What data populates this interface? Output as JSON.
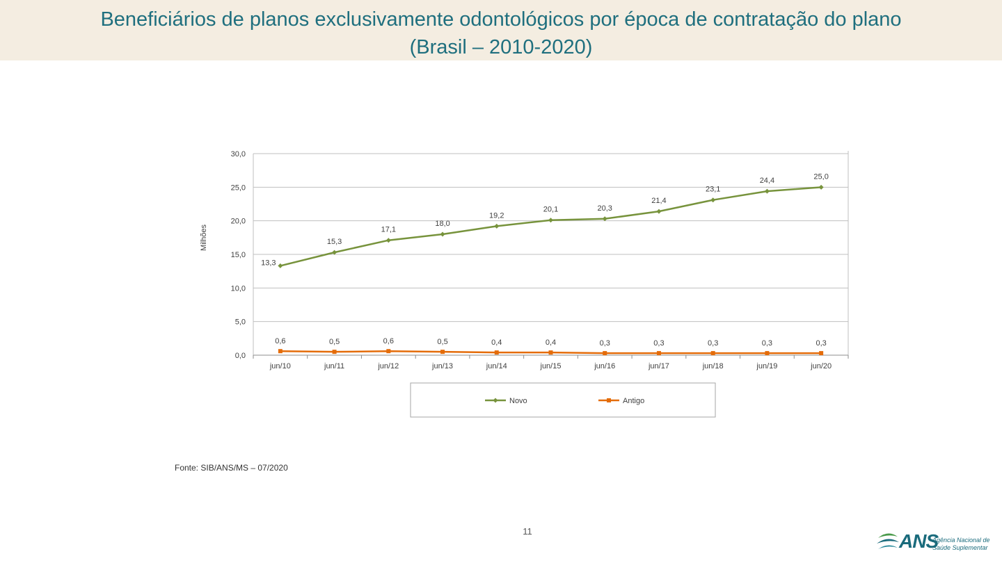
{
  "header": {
    "title_line1": "Beneficiários de planos exclusivamente odontológicos por época de contratação do plano",
    "title_line2": "(Brasil – 2010-2020)"
  },
  "chart_data": {
    "type": "line",
    "ylabel": "Milhões",
    "ylim": [
      0,
      30
    ],
    "yticks": [
      0,
      5,
      10,
      15,
      20,
      25,
      30
    ],
    "ytick_labels": [
      "0,0",
      "5,0",
      "10,0",
      "15,0",
      "20,0",
      "25,0",
      "30,0"
    ],
    "categories": [
      "jun/10",
      "jun/11",
      "jun/12",
      "jun/13",
      "jun/14",
      "jun/15",
      "jun/16",
      "jun/17",
      "jun/18",
      "jun/19",
      "jun/20"
    ],
    "grid": true,
    "legend_position": "bottom",
    "series": [
      {
        "name": "Novo",
        "color": "#77933c",
        "marker": "diamond",
        "values": [
          13.3,
          15.3,
          17.1,
          18.0,
          19.2,
          20.1,
          20.3,
          21.4,
          23.1,
          24.4,
          25.0
        ],
        "labels": [
          "13,3",
          "15,3",
          "17,1",
          "18,0",
          "19,2",
          "20,1",
          "20,3",
          "21,4",
          "23,1",
          "24,4",
          "25,0"
        ]
      },
      {
        "name": "Antigo",
        "color": "#e46c0a",
        "marker": "square",
        "values": [
          0.6,
          0.5,
          0.6,
          0.5,
          0.4,
          0.4,
          0.3,
          0.3,
          0.3,
          0.3,
          0.3
        ],
        "labels": [
          "0,6",
          "0,5",
          "0,6",
          "0,5",
          "0,4",
          "0,4",
          "0,3",
          "0,3",
          "0,3",
          "0,3",
          "0,3"
        ]
      }
    ]
  },
  "footer": {
    "source": "Fonte: SIB/ANS/MS – 07/2020",
    "page_number": "11"
  },
  "logo": {
    "brand": "ANS",
    "line1": "Agência Nacional de",
    "line2": "Saúde Suplementar"
  },
  "colors": {
    "title": "#1f6f7e",
    "title_band": "#f4ede1",
    "novo": "#77933c",
    "antigo": "#e46c0a"
  }
}
